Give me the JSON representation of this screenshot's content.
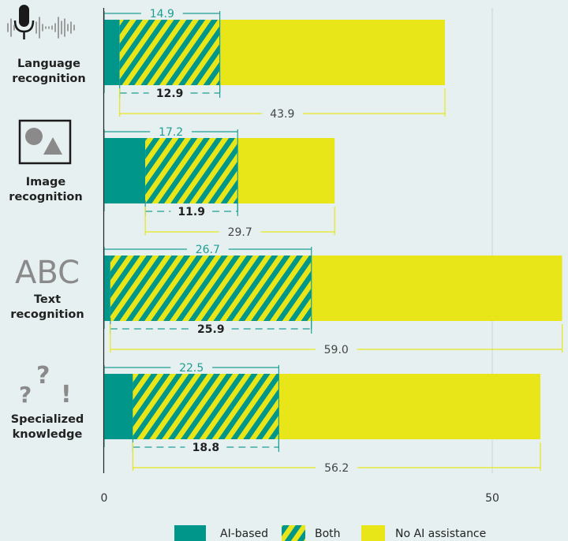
{
  "chart_data": {
    "type": "bar",
    "orientation": "horizontal",
    "stacked": true,
    "categories": [
      {
        "line1": "Language",
        "line2": "recognition",
        "icon": "microphone-waveform-icon"
      },
      {
        "line1": "Image",
        "line2": "recognition",
        "icon": "image-shapes-icon"
      },
      {
        "line1": "Text",
        "line2": "recognition",
        "icon": "abc-text-icon"
      },
      {
        "line1": "Specialized",
        "line2": "knowledge",
        "icon": "question-exclamation-icon"
      }
    ],
    "series": [
      {
        "name": "AI-based",
        "values": [
          2.0,
          5.3,
          0.8,
          3.7
        ],
        "color": "#00968a",
        "pattern": "solid"
      },
      {
        "name": "Both",
        "values": [
          12.9,
          11.9,
          25.9,
          18.8
        ],
        "color": "#e8e619",
        "pattern": "hatched",
        "hatch_color": "#00968a"
      },
      {
        "name": "No AI assistance",
        "values": [
          29.0,
          12.5,
          32.3,
          33.7
        ],
        "color": "#e8e619",
        "pattern": "solid"
      }
    ],
    "annotations": {
      "top_brackets": [
        "14.9",
        "17.2",
        "26.7",
        "22.5"
      ],
      "middle_brackets": [
        "12.9",
        "11.9",
        "25.9",
        "18.8"
      ],
      "bottom_brackets": [
        "43.9",
        "29.7",
        "59.0",
        "56.2"
      ]
    },
    "x_ticks": [
      "0",
      "50"
    ],
    "xlim": [
      0,
      60
    ],
    "grid": true,
    "legend_position": "bottom"
  },
  "icons": {
    "abc_text": "ABC"
  },
  "colors": {
    "teal": "#00968a",
    "yellow": "#e8e619",
    "teal_text": "#1e9e94",
    "background": "#e6f0f0"
  }
}
